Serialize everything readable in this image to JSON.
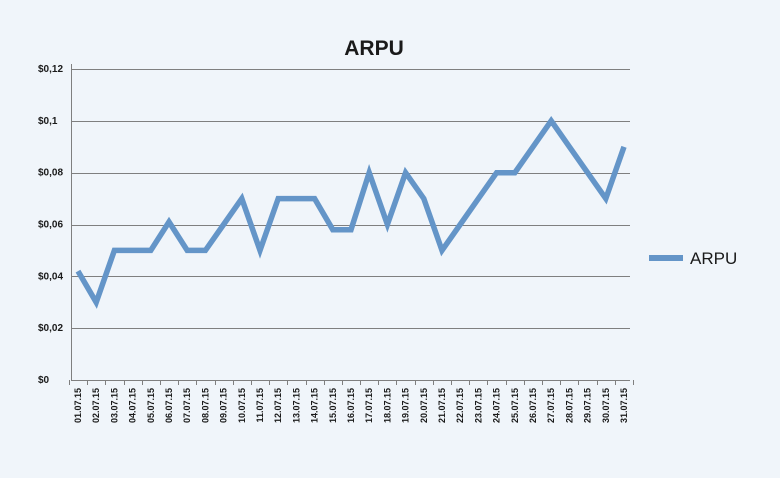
{
  "chart_data": {
    "type": "line",
    "title": "ARPU",
    "xlabel": "",
    "ylabel": "",
    "categories": [
      "01.07.15",
      "02.07.15",
      "03.07.15",
      "04.07.15",
      "05.07.15",
      "06.07.15",
      "07.07.15",
      "08.07.15",
      "09.07.15",
      "10.07.15",
      "11.07.15",
      "12.07.15",
      "13.07.15",
      "14.07.15",
      "15.07.15",
      "16.07.15",
      "17.07.15",
      "18.07.15",
      "19.07.15",
      "20.07.15",
      "21.07.15",
      "22.07.15",
      "23.07.15",
      "24.07.15",
      "25.07.15",
      "26.07.15",
      "27.07.15",
      "28.07.15",
      "29.07.15",
      "30.07.15",
      "31.07.15"
    ],
    "series": [
      {
        "name": "ARPU",
        "color": "#6495c8",
        "values": [
          0.042,
          0.03,
          0.05,
          0.05,
          0.05,
          0.061,
          0.05,
          0.05,
          0.06,
          0.07,
          0.05,
          0.07,
          0.07,
          0.07,
          0.058,
          0.058,
          0.08,
          0.06,
          0.08,
          0.07,
          0.05,
          0.06,
          0.07,
          0.08,
          0.08,
          0.09,
          0.1,
          0.09,
          0.08,
          0.07,
          0.09
        ]
      }
    ],
    "ylim": [
      0,
      0.12
    ],
    "yticks": [
      0,
      0.02,
      0.04,
      0.06,
      0.08,
      0.1,
      0.12
    ],
    "ytick_labels": [
      "$0",
      "$0,02",
      "$0,04",
      "$0,06",
      "$0,08",
      "$0,1",
      "$0,12"
    ],
    "grid": true,
    "legend_position": "right"
  }
}
